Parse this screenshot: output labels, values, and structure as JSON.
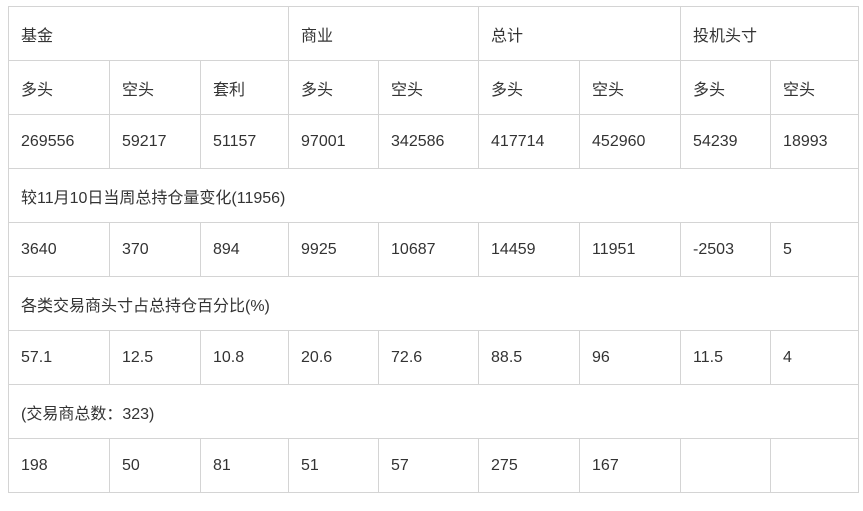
{
  "groups": [
    "基金",
    "商业",
    "总计",
    "投机头寸"
  ],
  "subheaders": [
    "多头",
    "空头",
    "套利",
    "多头",
    "空头",
    "多头",
    "空头",
    "多头",
    "空头"
  ],
  "positions": [
    "269556",
    "59217",
    "51157",
    "97001",
    "342586",
    "417714",
    "452960",
    "54239",
    "18993"
  ],
  "change_title": "较11月10日当周总持仓量变化(11956)",
  "changes": [
    "3640",
    "370",
    "894",
    "9925",
    "10687",
    "14459",
    "11951",
    "-2503",
    "5"
  ],
  "percent_title": "各类交易商头寸占总持仓百分比(%)",
  "percents": [
    "57.1",
    "12.5",
    "10.8",
    "20.6",
    "72.6",
    "88.5",
    "96",
    "11.5",
    "4"
  ],
  "traders_title": "(交易商总数：323)",
  "traders": [
    "198",
    "50",
    "81",
    "51",
    "57",
    "275",
    "167",
    "",
    ""
  ]
}
